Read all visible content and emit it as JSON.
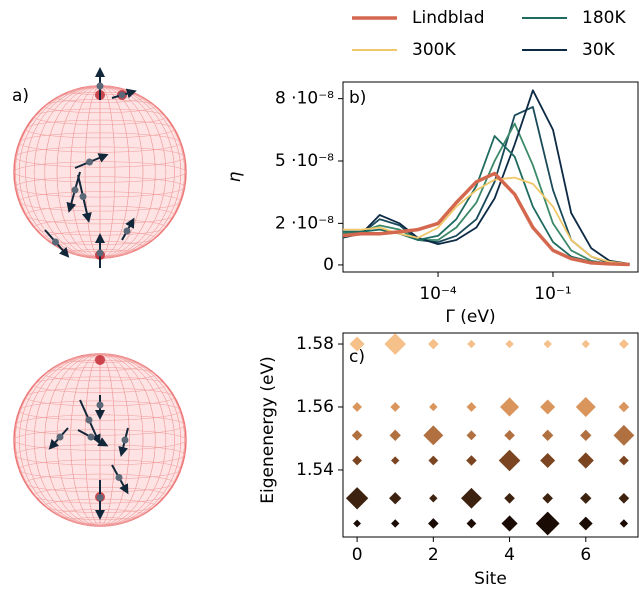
{
  "bloch_panel": {
    "label": "a)"
  },
  "chart_data": [
    {
      "type": "line",
      "label": "b)",
      "xlabel": "Γ (eV)",
      "ylabel": "η",
      "xscale": "log",
      "legend": "above",
      "x": [
        3e-07,
        1e-06,
        3e-06,
        1e-05,
        3e-05,
        0.0001,
        0.0003,
        0.001,
        0.003,
        0.01,
        0.03,
        0.1,
        0.3,
        1,
        3,
        10
      ],
      "xlim": [
        3.3e-07,
        16.6
      ],
      "xticks": [
        {
          "value": 0.0001,
          "label": "10⁻⁴"
        },
        {
          "value": 0.1,
          "label": "10⁻¹"
        }
      ],
      "ylim": [
        -3.4e-09,
        8.8e-08
      ],
      "yticks": [
        0,
        {
          "value": 2e-08,
          "label": "2 ·10⁻⁸"
        },
        {
          "value": 5e-08,
          "label": "5 ·10⁻⁸"
        },
        {
          "value": 8e-08,
          "label": "8 ·10⁻⁸"
        }
      ],
      "series": [
        {
          "name": "Lindblad",
          "color": "#d4684f",
          "linewidth": 3.5,
          "values": [
            1.4e-08,
            1.5e-08,
            1.5e-08,
            1.6e-08,
            1.7e-08,
            2e-08,
            3e-08,
            4e-08,
            4.4e-08,
            3.4e-08,
            1.8e-08,
            7e-09,
            3e-09,
            1e-09,
            5e-10,
            2e-10
          ]
        },
        {
          "name": "300K",
          "color": "#f0c86a",
          "values": [
            1.7e-08,
            1.7e-08,
            1.8e-08,
            1.5e-08,
            1.3e-08,
            1.8e-08,
            2.8e-08,
            3.6e-08,
            4.1e-08,
            4.2e-08,
            3.9e-08,
            2.8e-08,
            1.2e-08,
            4e-09,
            1.5e-09,
            5e-10
          ]
        },
        {
          "name": "180K",
          "color": "#1f6b60",
          "values": [
            1.6e-08,
            1.6e-08,
            1.7e-08,
            1.5e-08,
            1.2e-08,
            1.4e-08,
            2.2e-08,
            3.8e-08,
            6.2e-08,
            5.2e-08,
            2.8e-08,
            1.1e-08,
            4e-09,
            1.5e-09,
            5e-10,
            2e-10
          ]
        },
        {
          "name": "30K",
          "color": "#0d2a45",
          "values": [
            1.3e-08,
            1.5e-08,
            2.4e-08,
            2e-08,
            1.3e-08,
            1e-08,
            1.2e-08,
            1.8e-08,
            3.2e-08,
            5.8e-08,
            8.4e-08,
            6.5e-08,
            2.5e-08,
            8e-09,
            2e-09,
            5e-10
          ]
        },
        {
          "color": "#3d8a6a",
          "values": [
            1.5e-08,
            1.6e-08,
            1.9e-08,
            1.7e-08,
            1.2e-08,
            1.2e-08,
            1.8e-08,
            3e-08,
            5e-08,
            6.8e-08,
            4.8e-08,
            2e-08,
            7e-09,
            2e-09,
            6e-10,
            2e-10
          ]
        },
        {
          "color": "#1a4a5a",
          "values": [
            1.4e-08,
            1.5e-08,
            2.2e-08,
            1.9e-08,
            1.2e-08,
            1.1e-08,
            1.4e-08,
            2.2e-08,
            4e-08,
            7.2e-08,
            7.6e-08,
            3.6e-08,
            1.2e-08,
            4e-09,
            1e-09,
            3e-10
          ]
        }
      ]
    },
    {
      "type": "scatter",
      "label": "c)",
      "xlabel": "Site",
      "ylabel": "Eigenenergy (eV)",
      "xlim": [
        -0.37,
        7.37
      ],
      "xticks": [
        0,
        2,
        4,
        6
      ],
      "ylim": [
        1.5187,
        1.5835
      ],
      "yticks": [
        1.54,
        1.56,
        1.58
      ],
      "x": [
        0,
        1,
        2,
        3,
        4,
        5,
        6,
        7
      ],
      "series": [
        {
          "color": "#f5c08a",
          "energy": 1.58,
          "sizes": [
            0.25,
            0.6,
            0.1,
            0.05,
            0.05,
            0.05,
            0.05,
            0.08
          ]
        },
        {
          "color": "#d9955c",
          "energy": 1.56,
          "sizes": [
            0.08,
            0.08,
            0.05,
            0.08,
            0.45,
            0.25,
            0.5,
            0.1
          ]
        },
        {
          "color": "#b07040",
          "energy": 1.551,
          "sizes": [
            0.1,
            0.12,
            0.5,
            0.08,
            0.1,
            0.12,
            0.12,
            0.55
          ]
        },
        {
          "color": "#7a4520",
          "energy": 1.543,
          "sizes": [
            0.08,
            0.05,
            0.08,
            0.1,
            0.6,
            0.25,
            0.3,
            0.08
          ]
        },
        {
          "color": "#3d2210",
          "energy": 1.531,
          "sizes": [
            0.65,
            0.15,
            0.05,
            0.55,
            0.1,
            0.1,
            0.12,
            0.1
          ]
        },
        {
          "color": "#1a0c05",
          "energy": 1.523,
          "sizes": [
            0.04,
            0.05,
            0.1,
            0.08,
            0.3,
            0.75,
            0.2,
            0.05
          ]
        }
      ]
    }
  ]
}
